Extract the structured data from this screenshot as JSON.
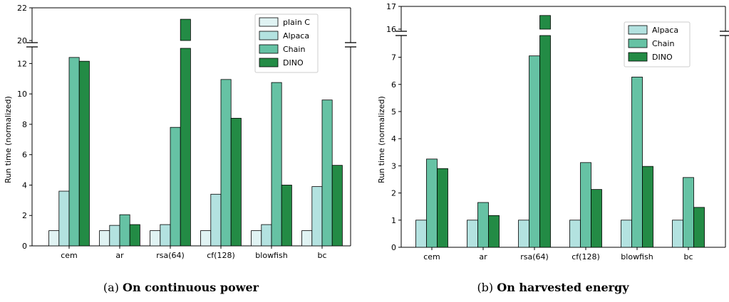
{
  "colors": {
    "plain C": "#e0f3f3",
    "Alpaca": "#b3e2e0",
    "Chain": "#66c2a4",
    "DINO": "#238b45",
    "edge": "#000000"
  },
  "chart_data": [
    {
      "type": "bar",
      "caption_prefix": "(a) ",
      "caption_bold": "On continuous power",
      "xlabel": "",
      "ylabel": "Run time (normalized)",
      "categories": [
        "cem",
        "ar",
        "rsa(64)",
        "cf(128)",
        "blowfish",
        "bc"
      ],
      "broken_axis": true,
      "lower_ylim": [
        0,
        13
      ],
      "lower_yticks": [
        0,
        2,
        4,
        6,
        8,
        10,
        12
      ],
      "upper_ylim": [
        20,
        22
      ],
      "upper_yticks": [
        20,
        22
      ],
      "legend_position": "top-right",
      "series": [
        {
          "name": "plain C",
          "values": [
            1,
            1,
            1,
            1,
            1,
            1
          ]
        },
        {
          "name": "Alpaca",
          "values": [
            3.6,
            1.35,
            1.4,
            3.4,
            1.4,
            3.9
          ]
        },
        {
          "name": "Chain",
          "values": [
            12.4,
            2.05,
            7.8,
            10.95,
            10.75,
            9.6
          ]
        },
        {
          "name": "DINO",
          "values": [
            12.15,
            1.4,
            21.3,
            8.4,
            4.0,
            5.3
          ]
        }
      ]
    },
    {
      "type": "bar",
      "caption_prefix": "(b) ",
      "caption_bold": "On harvested energy",
      "xlabel": "",
      "ylabel": "Run time (normalized)",
      "categories": [
        "cem",
        "ar",
        "rsa(64)",
        "cf(128)",
        "blowfish",
        "bc"
      ],
      "broken_axis": true,
      "lower_ylim": [
        0,
        7.8
      ],
      "lower_yticks": [
        0,
        1,
        2,
        3,
        4,
        5,
        6,
        7
      ],
      "upper_ylim": [
        16,
        17
      ],
      "upper_yticks": [
        16,
        17
      ],
      "legend_position": "top-right",
      "series": [
        {
          "name": "Alpaca",
          "values": [
            1,
            1,
            1,
            1,
            1,
            1
          ]
        },
        {
          "name": "Chain",
          "values": [
            3.25,
            1.65,
            7.05,
            3.12,
            6.27,
            2.57
          ]
        },
        {
          "name": "DINO",
          "values": [
            2.9,
            1.17,
            16.6,
            2.13,
            2.98,
            1.47
          ]
        }
      ]
    }
  ]
}
